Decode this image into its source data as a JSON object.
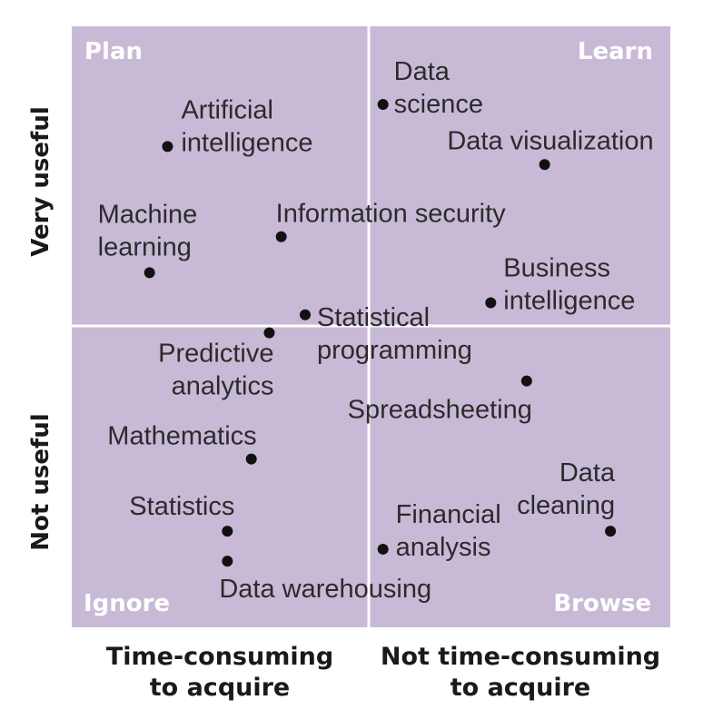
{
  "chart_data": {
    "type": "scatter",
    "title": "",
    "quadrants": {
      "top_left": "Plan",
      "top_right": "Learn",
      "bottom_left": "Ignore",
      "bottom_right": "Browse"
    },
    "x_axis": {
      "left_label": [
        "Time-consuming",
        "to acquire"
      ],
      "right_label": [
        "Not time-consuming",
        "to acquire"
      ]
    },
    "y_axis": {
      "top_label": "Very useful",
      "bottom_label": "Not useful"
    },
    "xlim": [
      0,
      10
    ],
    "ylim": [
      0,
      10
    ],
    "points": [
      {
        "label": [
          "Artificial",
          "intelligence"
        ],
        "x": 1.6,
        "y": 8.0
      },
      {
        "label": [
          "Data",
          "science"
        ],
        "x": 5.2,
        "y": 8.7
      },
      {
        "label": [
          "Data visualization"
        ],
        "x": 7.9,
        "y": 7.7
      },
      {
        "label": [
          "Machine",
          "learning"
        ],
        "x": 1.3,
        "y": 5.9
      },
      {
        "label": [
          "Information security"
        ],
        "x": 3.5,
        "y": 6.5
      },
      {
        "label": [
          "Business",
          "intelligence"
        ],
        "x": 7.0,
        "y": 5.4
      },
      {
        "label": [
          "Statistical",
          "programming"
        ],
        "x": 3.9,
        "y": 5.2
      },
      {
        "label": [
          "Predictive",
          "analytics"
        ],
        "x": 3.3,
        "y": 4.9
      },
      {
        "label": [
          "Spreadsheeting"
        ],
        "x": 7.6,
        "y": 4.1
      },
      {
        "label": [
          "Mathematics"
        ],
        "x": 3.0,
        "y": 2.8
      },
      {
        "label": [
          "Statistics"
        ],
        "x": 2.6,
        "y": 1.6
      },
      {
        "label": [
          "Data warehousing"
        ],
        "x": 2.6,
        "y": 1.1
      },
      {
        "label": [
          "Financial",
          "analysis"
        ],
        "x": 5.2,
        "y": 1.3
      },
      {
        "label": [
          "Data",
          "cleaning"
        ],
        "x": 9.0,
        "y": 1.6
      }
    ],
    "colors": {
      "quadrant_fill": "#c8bad6",
      "divider": "#ffffff",
      "point": "#111111",
      "quadrant_text": "#ffffff"
    }
  }
}
